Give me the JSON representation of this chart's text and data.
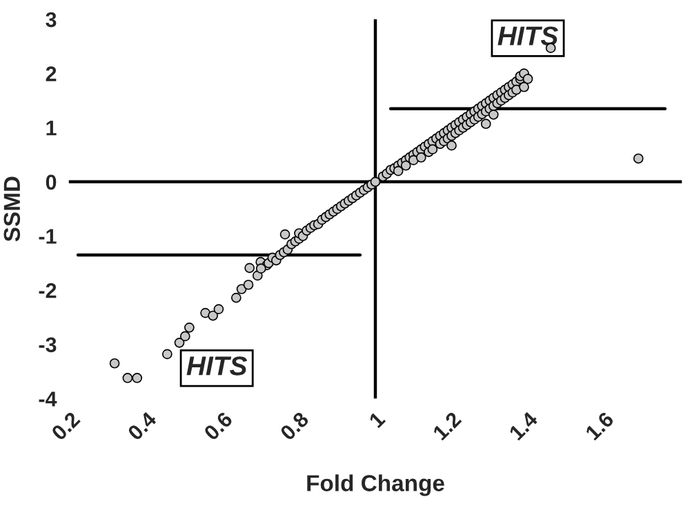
{
  "chart_data": {
    "type": "scatter",
    "xlabel": "Fold Change",
    "ylabel": "SSMD",
    "xlim": [
      0.2,
      1.8
    ],
    "ylim": [
      -4,
      3
    ],
    "xticks": [
      0.2,
      0.4,
      0.6,
      0.8,
      1,
      1.2,
      1.4,
      1.6
    ],
    "yticks": [
      -4,
      -3,
      -2,
      -1,
      0,
      1,
      2,
      3
    ],
    "grid": false,
    "legend": false,
    "marker": "circle",
    "series": [
      {
        "color": "#c8c8c8",
        "x": [
          0.316,
          0.35,
          0.375,
          0.454,
          0.486,
          0.501,
          0.512,
          0.554,
          0.574,
          0.589,
          0.635,
          0.649,
          0.667,
          0.67,
          0.691,
          0.699,
          0.715,
          0.7,
          0.72,
          0.73,
          0.74,
          0.75,
          0.76,
          0.763,
          0.77,
          0.78,
          0.79,
          0.8,
          0.8,
          0.81,
          0.82,
          0.83,
          0.84,
          0.85,
          0.86,
          0.87,
          0.88,
          0.89,
          0.9,
          0.91,
          0.92,
          0.93,
          0.94,
          0.95,
          0.96,
          0.97,
          0.98,
          0.99,
          1.0,
          1.02,
          1.03,
          1.04,
          1.05,
          1.06,
          1.06,
          1.07,
          1.08,
          1.08,
          1.09,
          1.1,
          1.1,
          1.11,
          1.12,
          1.12,
          1.13,
          1.14,
          1.14,
          1.15,
          1.15,
          1.16,
          1.17,
          1.17,
          1.18,
          1.18,
          1.19,
          1.19,
          1.2,
          1.2,
          1.21,
          1.21,
          1.22,
          1.22,
          1.23,
          1.23,
          1.24,
          1.24,
          1.25,
          1.25,
          1.26,
          1.26,
          1.27,
          1.27,
          1.28,
          1.28,
          1.29,
          1.29,
          1.3,
          1.3,
          1.31,
          1.31,
          1.32,
          1.32,
          1.33,
          1.33,
          1.34,
          1.34,
          1.35,
          1.35,
          1.36,
          1.36,
          1.37,
          1.37,
          1.38,
          1.38,
          1.39,
          1.4,
          1.39,
          1.2,
          1.29,
          1.31,
          1.69,
          1.46
        ],
        "values": [
          -3.35,
          -3.62,
          -3.62,
          -3.18,
          -2.97,
          -2.85,
          -2.69,
          -2.42,
          -2.47,
          -2.35,
          -2.14,
          -1.98,
          -1.9,
          -1.59,
          -1.73,
          -1.48,
          -1.54,
          -1.6,
          -1.5,
          -1.4,
          -1.45,
          -1.35,
          -1.3,
          -0.97,
          -1.25,
          -1.15,
          -1.1,
          -1.05,
          -0.95,
          -1.0,
          -0.9,
          -0.85,
          -0.8,
          -0.78,
          -0.7,
          -0.65,
          -0.6,
          -0.55,
          -0.5,
          -0.45,
          -0.4,
          -0.35,
          -0.3,
          -0.25,
          -0.2,
          -0.15,
          -0.1,
          -0.05,
          0.0,
          0.1,
          0.15,
          0.22,
          0.25,
          0.3,
          0.2,
          0.35,
          0.4,
          0.3,
          0.45,
          0.5,
          0.4,
          0.55,
          0.6,
          0.45,
          0.65,
          0.7,
          0.55,
          0.75,
          0.6,
          0.8,
          0.85,
          0.7,
          0.9,
          0.75,
          0.95,
          0.8,
          1.0,
          0.85,
          1.05,
          0.9,
          1.1,
          0.95,
          1.15,
          1.0,
          1.2,
          1.05,
          1.25,
          1.1,
          1.3,
          1.15,
          1.35,
          1.2,
          1.4,
          1.25,
          1.45,
          1.3,
          1.5,
          1.35,
          1.55,
          1.4,
          1.6,
          1.45,
          1.65,
          1.5,
          1.7,
          1.55,
          1.75,
          1.6,
          1.8,
          1.65,
          1.85,
          1.7,
          1.9,
          1.95,
          2.0,
          1.9,
          1.75,
          0.67,
          1.07,
          1.24,
          0.43,
          2.47
        ]
      },
      {
        "type": "line",
        "color": "#000000",
        "marker": "none",
        "line_style": "solid",
        "x": [
          1.04,
          1.76
        ],
        "values": [
          1.35,
          1.35
        ]
      },
      {
        "type": "line",
        "color": "#000000",
        "marker": "none",
        "line_style": "solid",
        "x": [
          0.22,
          0.96
        ],
        "values": [
          -1.35,
          -1.35
        ]
      }
    ],
    "ref_lines": [
      {
        "axis": "x",
        "value": 1,
        "color": "#000000"
      }
    ],
    "annotations": [
      "HITS",
      "HITS"
    ]
  }
}
